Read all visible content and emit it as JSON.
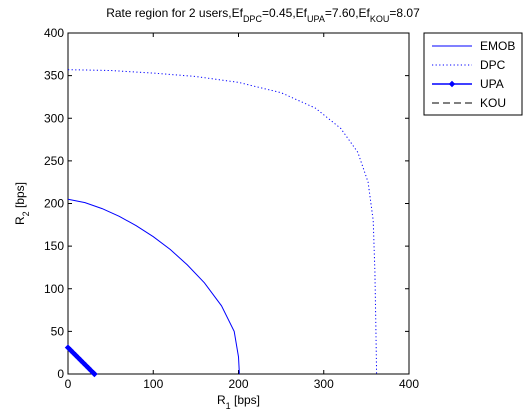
{
  "chart_data": {
    "type": "line",
    "title": {
      "parts": [
        {
          "text": "Rate region for 2 users,Ef",
          "sub": false
        },
        {
          "text": "DPC",
          "sub": true
        },
        {
          "text": "=0.45,Ef",
          "sub": false
        },
        {
          "text": "UPA",
          "sub": true
        },
        {
          "text": "=7.60,Ef",
          "sub": false
        },
        {
          "text": "KOU",
          "sub": true
        },
        {
          "text": "=8.07",
          "sub": false
        }
      ]
    },
    "xlabel": {
      "base": "R",
      "sub": "1",
      "rest": " [bps]"
    },
    "ylabel": {
      "base": "R",
      "sub": "2",
      "rest": " [bps]"
    },
    "xlim": [
      0,
      400
    ],
    "ylim": [
      0,
      400
    ],
    "xticks": [
      "0",
      "100",
      "200",
      "300",
      "400"
    ],
    "yticks": [
      "0",
      "50",
      "100",
      "150",
      "200",
      "250",
      "300",
      "350",
      "400"
    ],
    "grid": false,
    "legend_position": "top-right, outside plot",
    "series": [
      {
        "name": "EMOB",
        "style": "solid",
        "color": "#0000ff",
        "points": [
          [
            0,
            205
          ],
          [
            20,
            201
          ],
          [
            40,
            194
          ],
          [
            60,
            185
          ],
          [
            80,
            174
          ],
          [
            100,
            161
          ],
          [
            120,
            146
          ],
          [
            140,
            128
          ],
          [
            160,
            107
          ],
          [
            180,
            80
          ],
          [
            195,
            50
          ],
          [
            200,
            20
          ],
          [
            201,
            0
          ]
        ]
      },
      {
        "name": "DPC",
        "style": "dotted",
        "color": "#0000ff",
        "points": [
          [
            0,
            357
          ],
          [
            50,
            356
          ],
          [
            100,
            353
          ],
          [
            150,
            349
          ],
          [
            200,
            342
          ],
          [
            250,
            330
          ],
          [
            290,
            312
          ],
          [
            320,
            288
          ],
          [
            340,
            260
          ],
          [
            352,
            225
          ],
          [
            358,
            180
          ],
          [
            360,
            120
          ],
          [
            361,
            60
          ],
          [
            362,
            0
          ]
        ]
      },
      {
        "name": "UPA",
        "style": "solid-diamond",
        "color": "#0000ff",
        "points": [
          [
            0,
            31
          ],
          [
            3,
            28
          ],
          [
            6,
            25
          ],
          [
            9,
            22
          ],
          [
            12,
            19
          ],
          [
            15,
            16
          ],
          [
            18,
            13
          ],
          [
            21,
            10
          ],
          [
            24,
            7
          ],
          [
            27,
            4
          ],
          [
            30,
            1
          ],
          [
            31,
            0
          ]
        ]
      },
      {
        "name": "KOU",
        "style": "dashed",
        "color": "#0000ff",
        "points": [
          [
            0,
            31
          ],
          [
            31,
            0
          ]
        ]
      }
    ]
  }
}
